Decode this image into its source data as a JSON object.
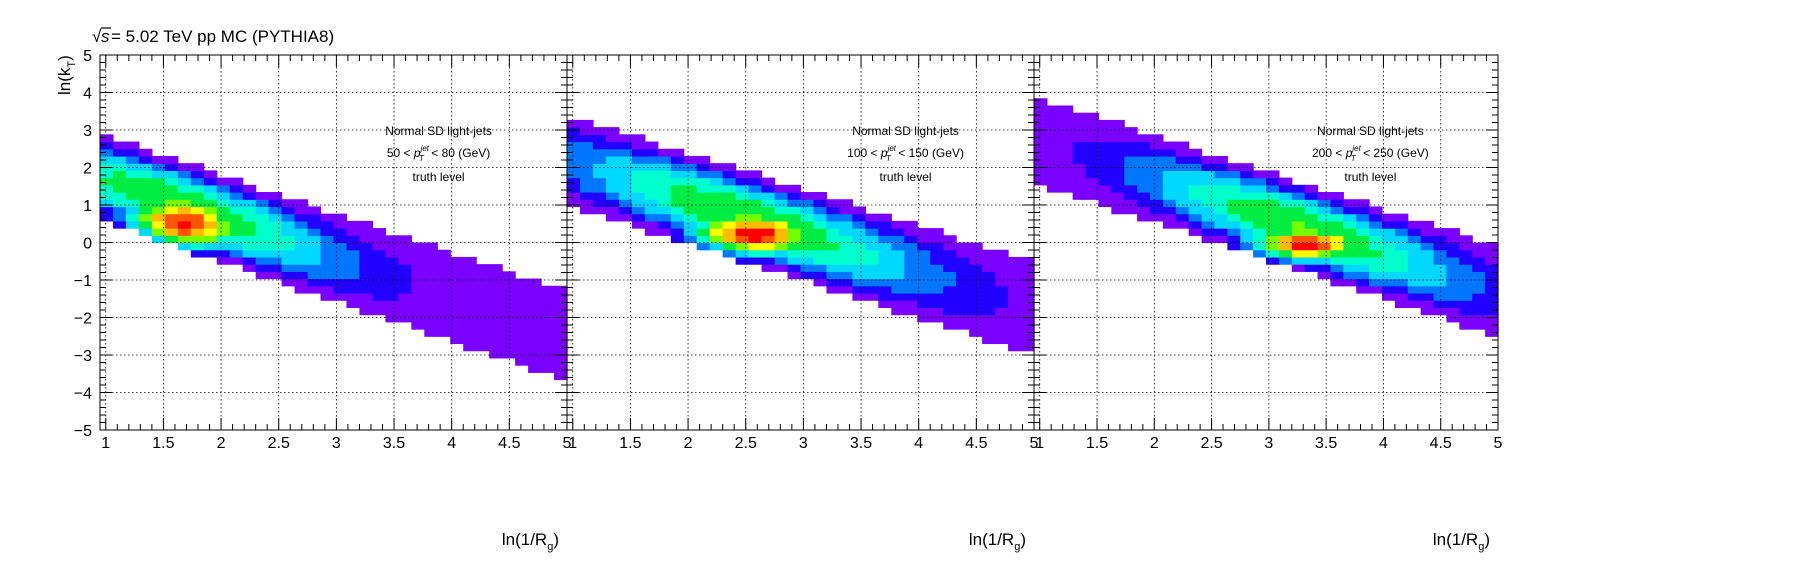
{
  "header": {
    "sqrt_symbol": "√",
    "s_symbol": "s",
    "energy_text": " = 5.02 TeV pp MC (PYTHIA8)"
  },
  "axes": {
    "ylabel_main": "ln(k",
    "ylabel_sub": "T",
    "ylabel_close": ")",
    "xlabel_main": "ln(1/R",
    "xlabel_sub": "g",
    "xlabel_close": ")"
  },
  "colors": {
    "palette": [
      "#7a00ff",
      "#2200ff",
      "#0077ff",
      "#00d8ff",
      "#00ffcc",
      "#00ee44",
      "#77ff00",
      "#ffff00",
      "#ffbb00",
      "#ff5500",
      "#ff0000"
    ],
    "grid": "#000000",
    "frame": "#000000"
  },
  "chart_data": [
    {
      "type": "heatmap",
      "annotation": {
        "line1": "Normal SD light-jets",
        "pt_low": "50 < ",
        "p": "p",
        "sub": "T",
        "sup": "jet",
        "pt_high": " < 80 (GeV)",
        "line3": "truth level"
      },
      "xlim": [
        0.95,
        5.0
      ],
      "ylim": [
        -5,
        5
      ],
      "x_ticks": [
        "1",
        "1.5",
        "2",
        "2.5",
        "3",
        "3.5",
        "4",
        "4.5",
        "5"
      ],
      "y_ticks": [
        "−5",
        "−4",
        "−3",
        "−2",
        "−1",
        "0",
        "1",
        "2",
        "3",
        "4",
        "5"
      ],
      "grid": true,
      "band": {
        "x_start": 0.95,
        "x_end": 5.0,
        "top_start": 2.9,
        "top_end": -1.3,
        "bottom_start": 0.6,
        "bottom_end": -3.7,
        "core_x": 1.65,
        "core_y": 0.45,
        "core_width": 0.5,
        "core_height": 0.6,
        "peak_shift": 0.0
      }
    },
    {
      "type": "heatmap",
      "annotation": {
        "line1": "Normal SD light-jets",
        "pt_low": "100 < ",
        "p": "p",
        "sub": "T",
        "sup": "jet",
        "pt_high": " < 150 (GeV)",
        "line3": "truth level"
      },
      "xlim": [
        0.95,
        5.0
      ],
      "ylim": [
        -5,
        5
      ],
      "x_ticks": [
        "1",
        "1.5",
        "2",
        "2.5",
        "3",
        "3.5",
        "4",
        "4.5",
        "5"
      ],
      "grid": true,
      "band": {
        "x_start": 0.95,
        "x_end": 5.0,
        "top_start": 3.4,
        "top_end": -0.5,
        "bottom_start": 1.0,
        "bottom_end": -3.0,
        "core_x": 2.55,
        "core_y": 0.2,
        "core_width": 0.55,
        "core_height": 0.45,
        "peak_shift": 0.0
      }
    },
    {
      "type": "heatmap",
      "annotation": {
        "line1": "Normal SD light-jets",
        "pt_low": "200 < ",
        "p": "p",
        "sub": "T",
        "sup": "jet",
        "pt_high": " < 250 (GeV)",
        "line3": "truth level"
      },
      "xlim": [
        0.95,
        5.0
      ],
      "ylim": [
        -5,
        5
      ],
      "x_ticks": [
        "1",
        "1.5",
        "2",
        "2.5",
        "3",
        "3.5",
        "4",
        "4.5",
        "5"
      ],
      "grid": true,
      "band": {
        "x_start": 0.95,
        "x_end": 5.0,
        "top_start": 3.9,
        "top_end": -0.1,
        "bottom_start": 1.6,
        "bottom_end": -2.5,
        "core_x": 3.3,
        "core_y": -0.05,
        "core_width": 0.5,
        "core_height": 0.35,
        "peak_shift": 0.0
      }
    }
  ]
}
